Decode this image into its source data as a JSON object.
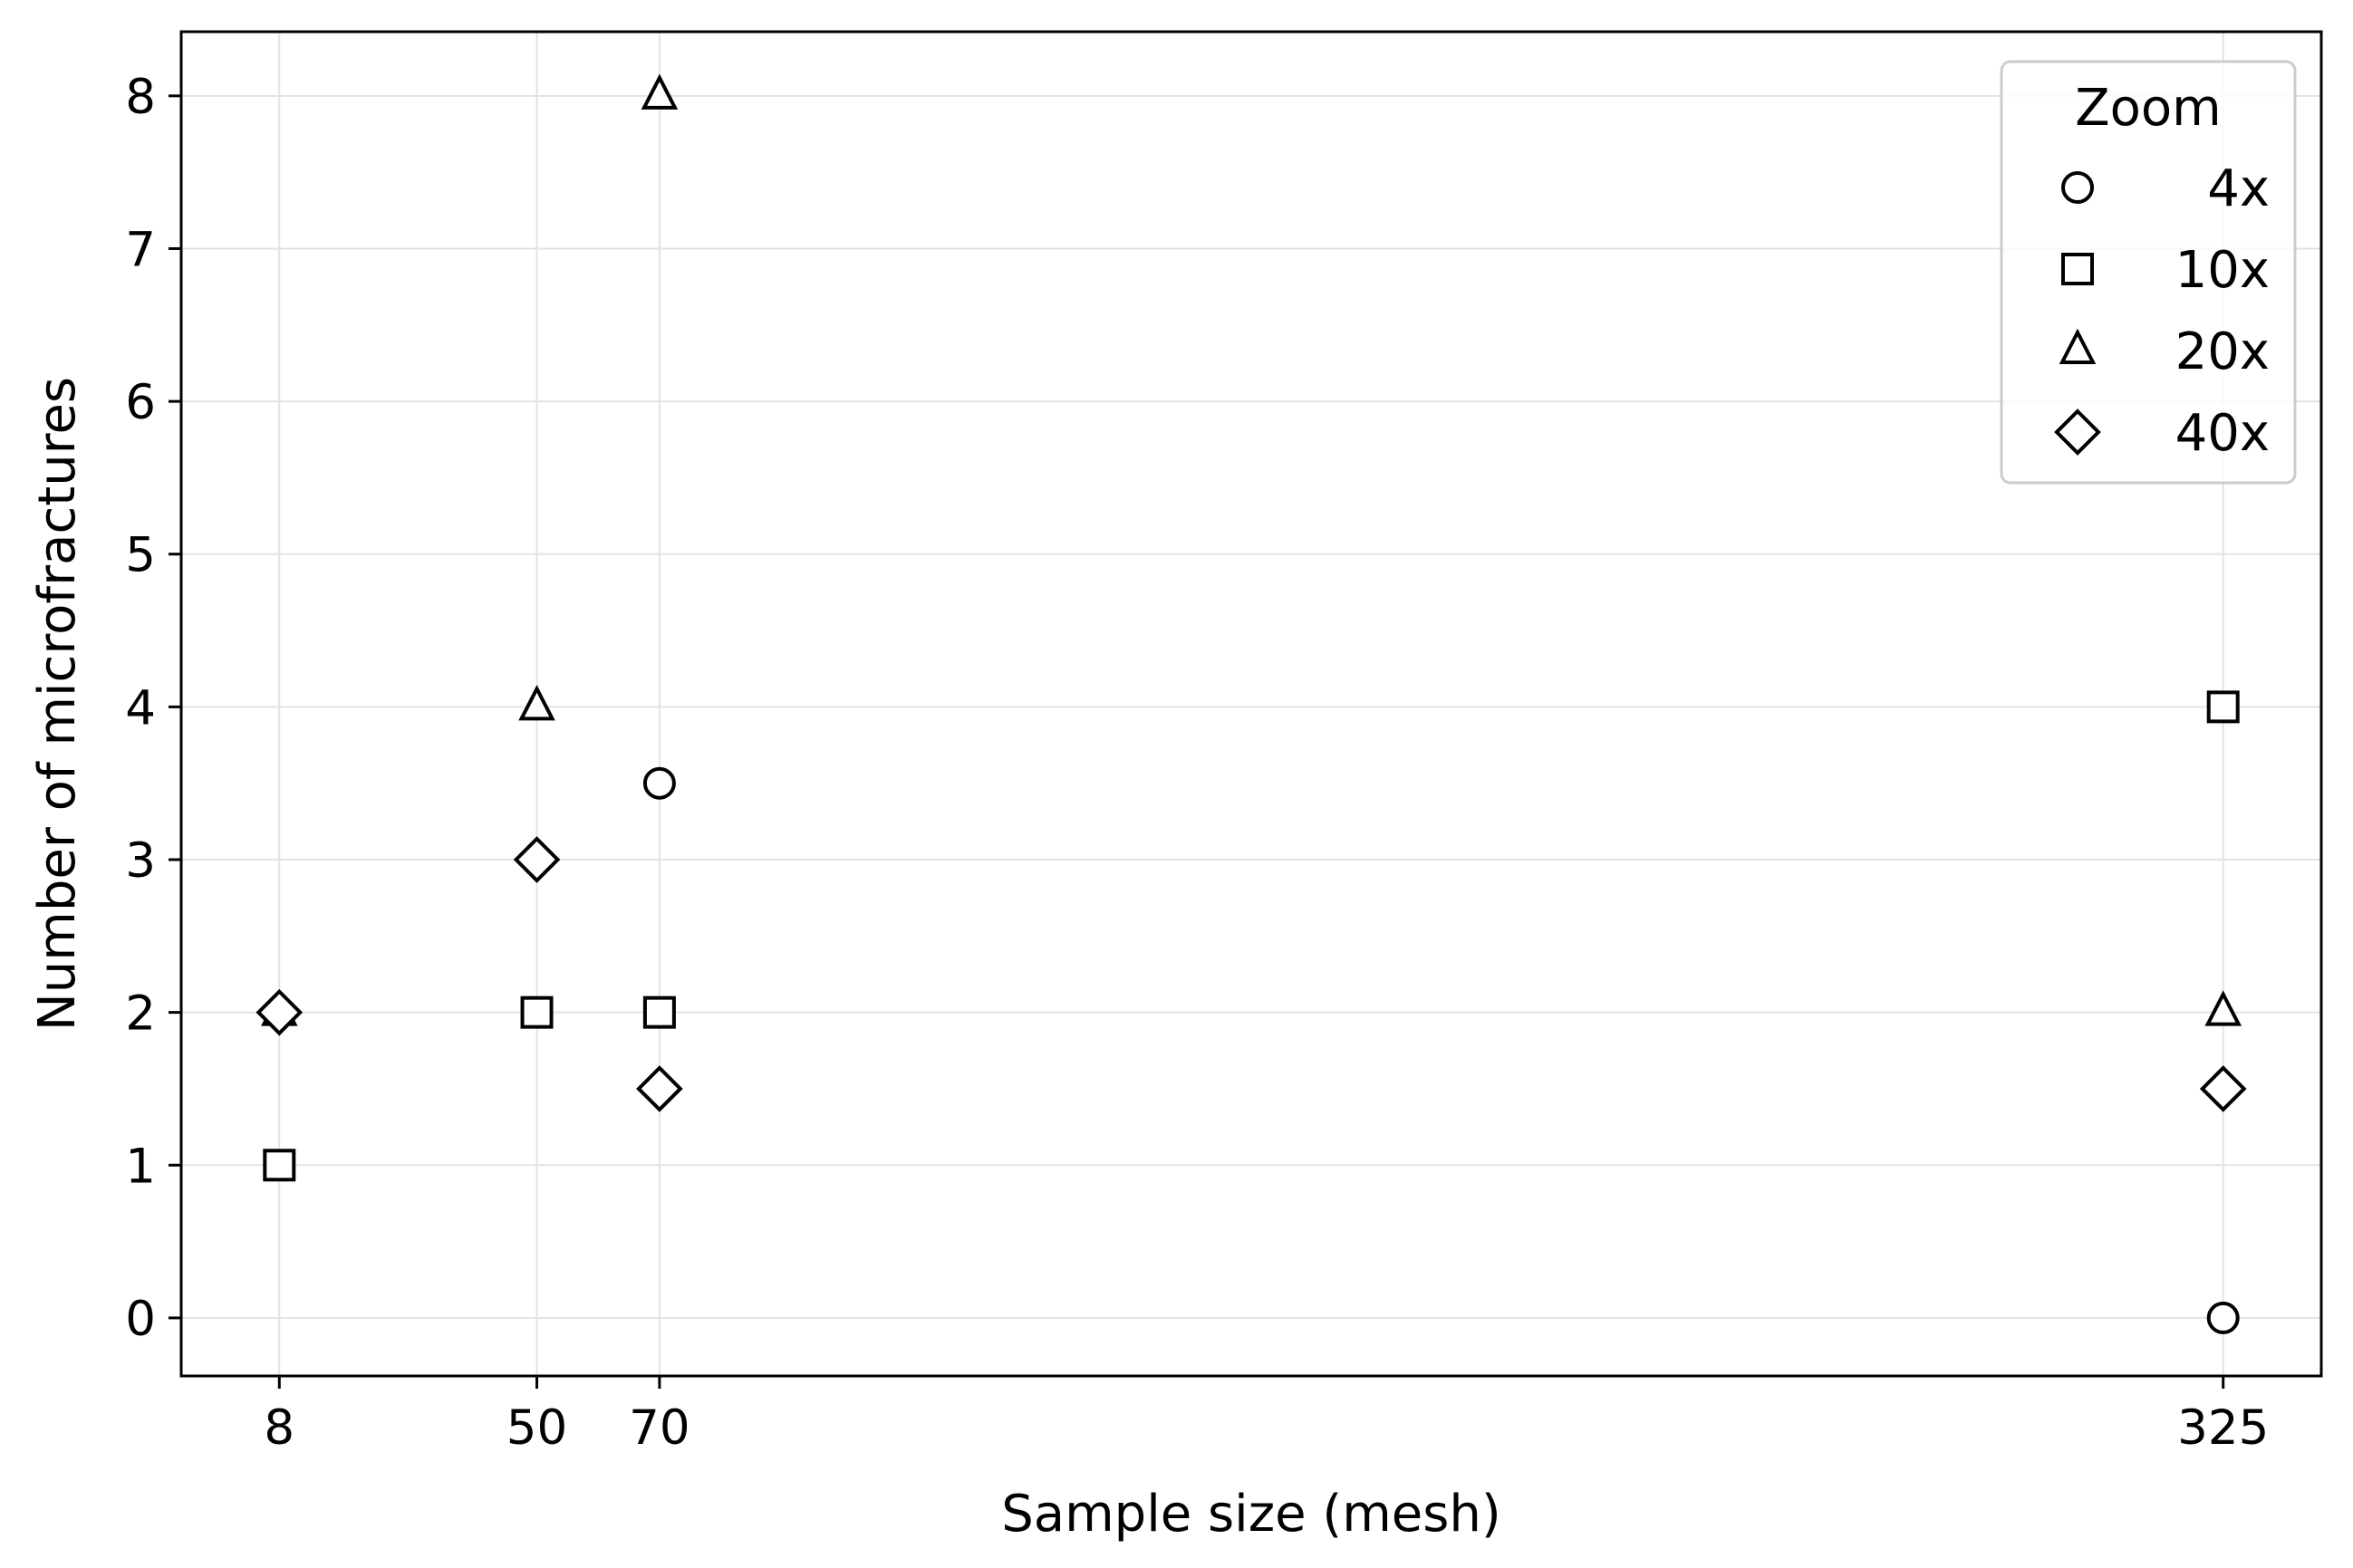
{
  "chart_data": {
    "type": "scatter",
    "title": "",
    "xlabel": "Sample size (mesh)",
    "ylabel": "Number of microfractures",
    "x_ticks": [
      8,
      50,
      70,
      325
    ],
    "y_ticks": [
      0,
      1,
      2,
      3,
      4,
      5,
      6,
      7,
      8
    ],
    "xlim": [
      -8,
      341
    ],
    "ylim": [
      -0.38,
      8.42
    ],
    "grid": true,
    "legend": {
      "title": "Zoom",
      "placement": "top-right"
    },
    "series": [
      {
        "name": "4x",
        "marker": "circle",
        "points": [
          [
            70,
            3.5
          ],
          [
            325,
            0
          ]
        ]
      },
      {
        "name": "10x",
        "marker": "square",
        "points": [
          [
            8,
            1
          ],
          [
            50,
            2
          ],
          [
            70,
            2
          ],
          [
            325,
            4
          ]
        ]
      },
      {
        "name": "20x",
        "marker": "triangle",
        "points": [
          [
            8,
            2
          ],
          [
            50,
            4
          ],
          [
            70,
            8
          ],
          [
            325,
            2
          ]
        ]
      },
      {
        "name": "40x",
        "marker": "diamond",
        "points": [
          [
            8,
            2
          ],
          [
            50,
            3
          ],
          [
            70,
            1.5
          ],
          [
            325,
            1.5
          ]
        ]
      }
    ],
    "colors": {
      "marker_edge": "#000000",
      "marker_fill": "#ffffff",
      "grid": "#e3e3e3",
      "frame": "#000000"
    }
  }
}
